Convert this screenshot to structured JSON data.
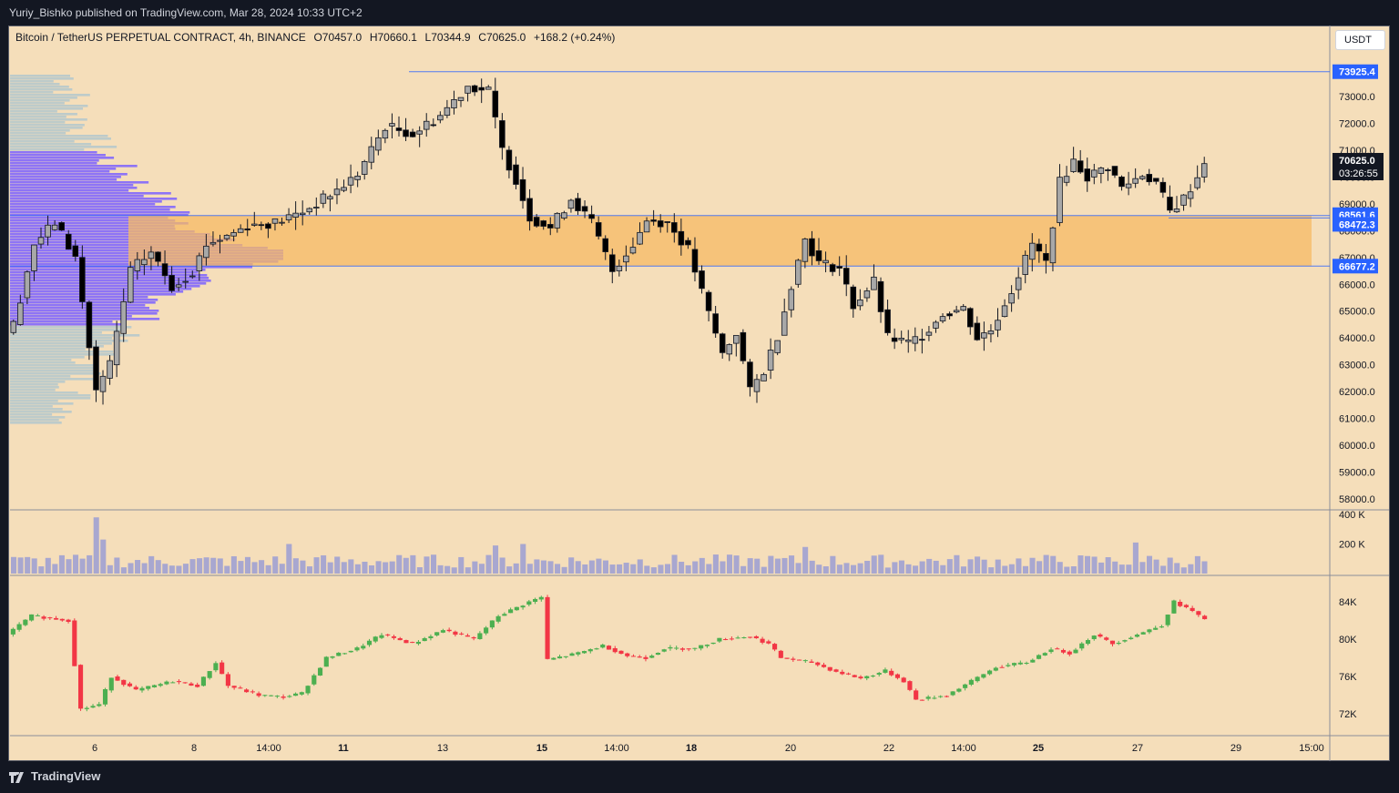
{
  "header": {
    "publisher": "Yuriy_Bishko published on TradingView.com, Mar 28, 2024 10:33 UTC+2"
  },
  "legend": {
    "symbol": "Bitcoin / TetherUS PERPETUAL CONTRACT, 4h, BINANCE",
    "open": "O70457.0",
    "high": "H70660.1",
    "low": "L70344.9",
    "close": "C70625.0",
    "change": "+168.2 (+0.24%)"
  },
  "unit_button": "USDT",
  "footer": {
    "brand": "TradingView"
  },
  "colors": {
    "background": "#f5deba",
    "zone": "#f5b964",
    "profile": "#7b61ff",
    "profile_light": "#a9c4cf",
    "up": "#4caf50",
    "down": "#f23645",
    "level": "#2962ff"
  },
  "chart_data": [
    {
      "type": "candlestick",
      "title": "",
      "ylim": [
        57500,
        74900
      ],
      "y_ticks": [
        "58000.0",
        "59000.0",
        "60000.0",
        "61000.0",
        "62000.0",
        "63000.0",
        "64000.0",
        "65000.0",
        "66000.0",
        "67000.0",
        "68000.0",
        "69000.0",
        "70000.0",
        "71000.0",
        "72000.0",
        "73000.0"
      ],
      "y_tick_values": [
        58000,
        59000,
        60000,
        61000,
        62000,
        63000,
        64000,
        65000,
        66000,
        67000,
        68000,
        69000,
        70000,
        71000,
        72000,
        73000
      ],
      "x_ticks": [
        "6",
        "8",
        "14:00",
        "11",
        "13",
        "15",
        "14:00",
        "18",
        "20",
        "22",
        "14:00",
        "25",
        "27",
        "29",
        "15:00"
      ],
      "x_tick_bold": [
        false,
        false,
        false,
        true,
        false,
        true,
        false,
        true,
        false,
        false,
        false,
        true,
        false,
        false,
        false
      ],
      "price_labels": [
        {
          "label": "73925.4",
          "value": 73925.4
        },
        {
          "label": "68561.6",
          "value": 68561.6
        },
        {
          "label": "68472.3",
          "value": 68472.3
        },
        {
          "label": "66677.2",
          "value": 66677.2
        }
      ],
      "last_price": {
        "label": "70625.0",
        "value": 70625.0,
        "countdown": "03:26:55"
      },
      "zone": {
        "top": 68561.6,
        "bottom": 66677.2
      },
      "key_points": [
        {
          "i": 0,
          "p": 64500
        },
        {
          "i": 3,
          "p": 67500
        },
        {
          "i": 6,
          "p": 68300
        },
        {
          "i": 9,
          "p": 67000
        },
        {
          "i": 12,
          "p": 62000
        },
        {
          "i": 14,
          "p": 63000
        },
        {
          "i": 17,
          "p": 66500
        },
        {
          "i": 20,
          "p": 67200
        },
        {
          "i": 23,
          "p": 65900
        },
        {
          "i": 26,
          "p": 66500
        },
        {
          "i": 28,
          "p": 67500
        },
        {
          "i": 31,
          "p": 67800
        },
        {
          "i": 34,
          "p": 68200
        },
        {
          "i": 38,
          "p": 68300
        },
        {
          "i": 42,
          "p": 68700
        },
        {
          "i": 47,
          "p": 69500
        },
        {
          "i": 50,
          "p": 70100
        },
        {
          "i": 54,
          "p": 71900
        },
        {
          "i": 58,
          "p": 71600
        },
        {
          "i": 62,
          "p": 72300
        },
        {
          "i": 66,
          "p": 73400
        },
        {
          "i": 69,
          "p": 73200
        },
        {
          "i": 71,
          "p": 71000
        },
        {
          "i": 73,
          "p": 69900
        },
        {
          "i": 75,
          "p": 68500
        },
        {
          "i": 78,
          "p": 68100
        },
        {
          "i": 81,
          "p": 69200
        },
        {
          "i": 84,
          "p": 68300
        },
        {
          "i": 87,
          "p": 66500
        },
        {
          "i": 90,
          "p": 67500
        },
        {
          "i": 92,
          "p": 68400
        },
        {
          "i": 95,
          "p": 68300
        },
        {
          "i": 98,
          "p": 67300
        },
        {
          "i": 101,
          "p": 64900
        },
        {
          "i": 103,
          "p": 63400
        },
        {
          "i": 105,
          "p": 64200
        },
        {
          "i": 107,
          "p": 62000
        },
        {
          "i": 109,
          "p": 62800
        },
        {
          "i": 111,
          "p": 64100
        },
        {
          "i": 113,
          "p": 66000
        },
        {
          "i": 115,
          "p": 67700
        },
        {
          "i": 117,
          "p": 66800
        },
        {
          "i": 120,
          "p": 66600
        },
        {
          "i": 122,
          "p": 65200
        },
        {
          "i": 125,
          "p": 66100
        },
        {
          "i": 127,
          "p": 64000
        },
        {
          "i": 130,
          "p": 63800
        },
        {
          "i": 132,
          "p": 64100
        },
        {
          "i": 135,
          "p": 64900
        },
        {
          "i": 138,
          "p": 65100
        },
        {
          "i": 140,
          "p": 64000
        },
        {
          "i": 142,
          "p": 64300
        },
        {
          "i": 145,
          "p": 65800
        },
        {
          "i": 148,
          "p": 67500
        },
        {
          "i": 150,
          "p": 66800
        },
        {
          "i": 152,
          "p": 69800
        },
        {
          "i": 154,
          "p": 70600
        },
        {
          "i": 156,
          "p": 70000
        },
        {
          "i": 159,
          "p": 70400
        },
        {
          "i": 161,
          "p": 69600
        },
        {
          "i": 164,
          "p": 70100
        },
        {
          "i": 166,
          "p": 69800
        },
        {
          "i": 168,
          "p": 68700
        },
        {
          "i": 170,
          "p": 69200
        },
        {
          "i": 172,
          "p": 70000
        },
        {
          "i": 173,
          "p": 70625
        }
      ],
      "candle_count": 174
    },
    {
      "type": "bar",
      "title": "",
      "name": "volume",
      "y_ticks": [
        "400 K",
        "200 K"
      ],
      "y_tick_values": [
        400000,
        200000
      ],
      "ylim": [
        0,
        420000
      ],
      "spikes": [
        {
          "i": 12,
          "v": 380000
        },
        {
          "i": 13,
          "v": 230000
        },
        {
          "i": 40,
          "v": 200000
        },
        {
          "i": 70,
          "v": 190000
        },
        {
          "i": 74,
          "v": 200000
        },
        {
          "i": 115,
          "v": 180000
        },
        {
          "i": 163,
          "v": 210000
        }
      ]
    },
    {
      "type": "candlestick",
      "title": "",
      "name": "oscillator",
      "y_ticks": [
        "84K",
        "80K",
        "76K",
        "72K"
      ],
      "y_tick_values": [
        84000,
        80000,
        76000,
        72000
      ],
      "ylim": [
        70500,
        85600
      ],
      "key_points": [
        {
          "i": 0,
          "p": 81000
        },
        {
          "i": 3,
          "p": 82500
        },
        {
          "i": 9,
          "p": 82000
        },
        {
          "i": 11,
          "p": 72500
        },
        {
          "i": 14,
          "p": 73000
        },
        {
          "i": 16,
          "p": 76000
        },
        {
          "i": 20,
          "p": 74500
        },
        {
          "i": 26,
          "p": 75500
        },
        {
          "i": 30,
          "p": 75000
        },
        {
          "i": 33,
          "p": 77500
        },
        {
          "i": 35,
          "p": 75000
        },
        {
          "i": 40,
          "p": 74000
        },
        {
          "i": 44,
          "p": 73800
        },
        {
          "i": 47,
          "p": 74200
        },
        {
          "i": 51,
          "p": 78000
        },
        {
          "i": 56,
          "p": 79000
        },
        {
          "i": 60,
          "p": 80500
        },
        {
          "i": 65,
          "p": 79500
        },
        {
          "i": 70,
          "p": 81000
        },
        {
          "i": 75,
          "p": 80000
        },
        {
          "i": 79,
          "p": 82500
        },
        {
          "i": 84,
          "p": 84000
        },
        {
          "i": 86,
          "p": 84500
        },
        {
          "i": 87,
          "p": 77800
        },
        {
          "i": 92,
          "p": 78500
        },
        {
          "i": 96,
          "p": 79300
        },
        {
          "i": 100,
          "p": 78200
        },
        {
          "i": 103,
          "p": 78000
        },
        {
          "i": 106,
          "p": 79000
        },
        {
          "i": 111,
          "p": 79000
        },
        {
          "i": 115,
          "p": 80000
        },
        {
          "i": 120,
          "p": 80300
        },
        {
          "i": 123,
          "p": 79500
        },
        {
          "i": 125,
          "p": 78000
        },
        {
          "i": 130,
          "p": 77500
        },
        {
          "i": 134,
          "p": 76500
        },
        {
          "i": 138,
          "p": 75800
        },
        {
          "i": 142,
          "p": 76600
        },
        {
          "i": 145,
          "p": 75500
        },
        {
          "i": 147,
          "p": 73500
        },
        {
          "i": 152,
          "p": 74000
        },
        {
          "i": 156,
          "p": 75500
        },
        {
          "i": 160,
          "p": 77000
        },
        {
          "i": 165,
          "p": 77500
        },
        {
          "i": 169,
          "p": 79000
        },
        {
          "i": 172,
          "p": 78500
        },
        {
          "i": 176,
          "p": 80500
        },
        {
          "i": 179,
          "p": 79500
        },
        {
          "i": 183,
          "p": 80500
        },
        {
          "i": 187,
          "p": 81500
        },
        {
          "i": 189,
          "p": 84000
        },
        {
          "i": 192,
          "p": 83000
        },
        {
          "i": 194,
          "p": 82000
        }
      ],
      "candle_count": 195
    }
  ]
}
